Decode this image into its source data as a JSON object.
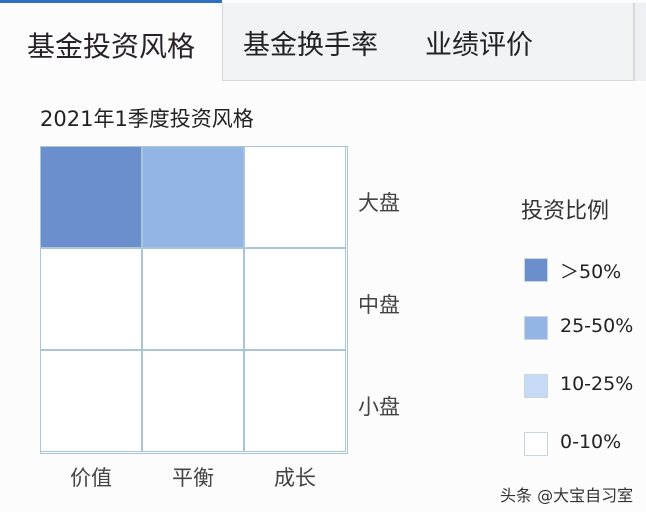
{
  "tabs": [
    {
      "label": "基金投资风格",
      "active": true
    },
    {
      "label": "基金换手率"
    },
    {
      "label": "业绩评价"
    }
  ],
  "subtitle": "2021年1季度投资风格",
  "grid": {
    "rows": [
      "大盘",
      "中盘",
      "小盘"
    ],
    "columns": [
      "价值",
      "平衡",
      "成长"
    ],
    "levels": [
      [
        ">50%",
        "25-50%",
        "0-10%"
      ],
      [
        "0-10%",
        "0-10%",
        "0-10%"
      ],
      [
        "0-10%",
        "0-10%",
        "0-10%"
      ]
    ]
  },
  "legend": {
    "title": "投资比例",
    "items": [
      {
        "label": "＞50%",
        "key": ">50%",
        "color": "#6b8fcc"
      },
      {
        "label": "25-50%",
        "key": "25-50%",
        "color": "#93b5e6"
      },
      {
        "label": "10-25%",
        "key": "10-25%",
        "color": "#c6daf6"
      },
      {
        "label": "0-10%",
        "key": "0-10%",
        "color": "#ffffff"
      }
    ]
  },
  "watermark": "头条 @大宝自习室",
  "accent": "#2f6fc0"
}
